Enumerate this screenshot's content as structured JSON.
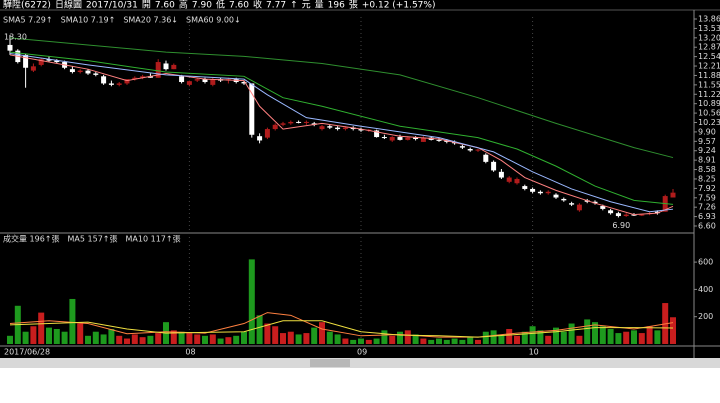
{
  "header": {
    "texts": [
      "驊陞(6272)",
      "日線圖",
      "2017/10/31",
      "開",
      "7.60",
      "高",
      "7.90",
      "低",
      "7.60",
      "收",
      "7.77",
      "↑",
      "元",
      "量",
      "196",
      "張",
      "+0.12 (+1.57%)"
    ]
  },
  "chart_data": {
    "type": "candlestick",
    "legend": [
      {
        "text": "SMA5 7.29↑",
        "color": "#ff5050"
      },
      {
        "text": "SMA10 7.19↑",
        "color": "#5fa8ff"
      },
      {
        "text": "SMA20 7.36↓",
        "color": "#40d040"
      },
      {
        "text": "SMA60 9.00↓",
        "color": "#e8c040"
      }
    ],
    "annotations": [
      {
        "text": "13.30",
        "index": 0
      },
      {
        "text": "6.90",
        "index": 78
      }
    ],
    "categories": [
      "2017/06/28",
      null,
      null,
      null,
      null,
      null,
      null,
      null,
      null,
      null,
      null,
      null,
      null,
      null,
      null,
      null,
      null,
      null,
      null,
      null,
      null,
      null,
      null,
      "08",
      null,
      null,
      null,
      null,
      null,
      null,
      null,
      null,
      null,
      null,
      null,
      null,
      null,
      null,
      null,
      null,
      null,
      null,
      null,
      null,
      null,
      "09",
      null,
      null,
      null,
      null,
      null,
      null,
      null,
      null,
      null,
      null,
      null,
      null,
      null,
      null,
      null,
      null,
      null,
      null,
      null,
      null,
      null,
      "10",
      null,
      null,
      null,
      null,
      null,
      null,
      null,
      null,
      null,
      null,
      null,
      null,
      null,
      null,
      null,
      null,
      null
    ],
    "ohlc": [
      [
        12.95,
        13.3,
        12.6,
        12.75
      ],
      [
        12.75,
        12.8,
        12.3,
        12.35
      ],
      [
        12.6,
        12.65,
        11.45,
        12.15
      ],
      [
        12.05,
        12.3,
        12.0,
        12.2
      ],
      [
        12.25,
        12.5,
        12.2,
        12.45
      ],
      [
        12.45,
        12.55,
        12.35,
        12.4
      ],
      [
        12.4,
        12.45,
        12.3,
        12.35
      ],
      [
        12.35,
        12.4,
        12.1,
        12.15
      ],
      [
        12.1,
        12.2,
        11.95,
        12.0
      ],
      [
        12.0,
        12.1,
        11.95,
        12.05
      ],
      [
        12.05,
        12.1,
        11.9,
        11.95
      ],
      [
        11.95,
        12.0,
        11.85,
        11.9
      ],
      [
        11.85,
        11.9,
        11.55,
        11.6
      ],
      [
        11.6,
        11.7,
        11.5,
        11.55
      ],
      [
        11.55,
        11.65,
        11.5,
        11.6
      ],
      [
        11.6,
        11.75,
        11.55,
        11.75
      ],
      [
        11.75,
        11.85,
        11.7,
        11.8
      ],
      [
        11.8,
        11.9,
        11.75,
        11.85
      ],
      [
        11.85,
        11.95,
        11.8,
        11.8
      ],
      [
        11.8,
        12.45,
        11.8,
        12.35
      ],
      [
        12.3,
        12.4,
        12.05,
        12.1
      ],
      [
        12.1,
        12.3,
        12.1,
        12.25
      ],
      [
        11.85,
        11.9,
        11.6,
        11.65
      ],
      [
        11.55,
        11.7,
        11.5,
        11.68
      ],
      [
        11.7,
        11.8,
        11.65,
        11.75
      ],
      [
        11.75,
        11.8,
        11.6,
        11.65
      ],
      [
        11.55,
        11.8,
        11.5,
        11.75
      ],
      [
        11.75,
        11.8,
        11.65,
        11.7
      ],
      [
        11.7,
        11.8,
        11.6,
        11.75
      ],
      [
        11.75,
        11.8,
        11.6,
        11.65
      ],
      [
        11.65,
        11.7,
        11.55,
        11.6
      ],
      [
        11.6,
        11.6,
        9.7,
        9.8
      ],
      [
        9.75,
        9.85,
        9.5,
        9.6
      ],
      [
        9.7,
        10.05,
        9.65,
        10.0
      ],
      [
        10.0,
        10.2,
        9.95,
        10.15
      ],
      [
        10.15,
        10.25,
        10.1,
        10.2
      ],
      [
        10.2,
        10.3,
        10.15,
        10.25
      ],
      [
        10.25,
        10.3,
        10.2,
        10.22
      ],
      [
        10.22,
        10.3,
        10.15,
        10.25
      ],
      [
        10.2,
        10.25,
        10.1,
        10.15
      ],
      [
        10.0,
        10.15,
        9.95,
        10.1
      ],
      [
        10.1,
        10.15,
        10.0,
        10.05
      ],
      [
        10.05,
        10.1,
        9.95,
        10.0
      ],
      [
        10.0,
        10.1,
        9.95,
        10.05
      ],
      [
        10.05,
        10.1,
        9.95,
        10.0
      ],
      [
        10.0,
        10.05,
        9.9,
        9.95
      ],
      [
        9.95,
        10.0,
        9.9,
        9.98
      ],
      [
        9.95,
        9.98,
        9.7,
        9.72
      ],
      [
        9.72,
        9.8,
        9.65,
        9.7
      ],
      [
        9.6,
        9.75,
        9.55,
        9.72
      ],
      [
        9.72,
        9.8,
        9.6,
        9.62
      ],
      [
        9.62,
        9.75,
        9.6,
        9.7
      ],
      [
        9.7,
        9.75,
        9.6,
        9.65
      ],
      [
        9.55,
        9.75,
        9.55,
        9.7
      ],
      [
        9.7,
        9.75,
        9.6,
        9.62
      ],
      [
        9.62,
        9.7,
        9.55,
        9.6
      ],
      [
        9.6,
        9.65,
        9.5,
        9.55
      ],
      [
        9.55,
        9.6,
        9.45,
        9.5
      ],
      [
        9.4,
        9.45,
        9.3,
        9.35
      ],
      [
        9.3,
        9.35,
        9.2,
        9.25
      ],
      [
        9.25,
        9.3,
        9.2,
        9.28
      ],
      [
        9.1,
        9.15,
        8.8,
        8.85
      ],
      [
        8.85,
        8.9,
        8.5,
        8.55
      ],
      [
        8.5,
        8.6,
        8.25,
        8.3
      ],
      [
        8.15,
        8.35,
        8.1,
        8.3
      ],
      [
        8.1,
        8.3,
        8.05,
        8.25
      ],
      [
        8.0,
        8.05,
        7.85,
        7.9
      ],
      [
        7.9,
        7.95,
        7.75,
        7.8
      ],
      [
        7.8,
        7.85,
        7.7,
        7.75
      ],
      [
        7.75,
        7.85,
        7.7,
        7.8
      ],
      [
        7.7,
        7.75,
        7.55,
        7.6
      ],
      [
        7.55,
        7.6,
        7.45,
        7.5
      ],
      [
        7.4,
        7.45,
        7.3,
        7.35
      ],
      [
        7.15,
        7.4,
        7.1,
        7.35
      ],
      [
        7.5,
        7.55,
        7.4,
        7.45
      ],
      [
        7.45,
        7.5,
        7.35,
        7.4
      ],
      [
        7.3,
        7.35,
        7.15,
        7.2
      ],
      [
        7.15,
        7.2,
        7.0,
        7.05
      ],
      [
        7.05,
        7.1,
        6.9,
        6.95
      ],
      [
        6.95,
        7.05,
        6.92,
        7.0
      ],
      [
        7.0,
        7.05,
        6.95,
        6.98
      ],
      [
        6.98,
        7.02,
        6.95,
        7.0
      ],
      [
        7.02,
        7.1,
        6.98,
        7.05
      ],
      [
        7.1,
        7.15,
        7.0,
        7.05
      ],
      [
        7.1,
        7.7,
        7.1,
        7.65
      ],
      [
        7.6,
        7.9,
        7.6,
        7.77
      ]
    ],
    "up_color": "#b01c1c",
    "down_color": "#ffffff",
    "series": [
      {
        "name": "SMA5",
        "color": "#ff8080",
        "x": [
          0,
          5,
          10,
          15,
          20,
          25,
          30,
          32,
          35,
          40,
          45,
          50,
          55,
          60,
          63,
          66,
          70,
          75,
          80,
          83,
          85
        ],
        "values": [
          12.6,
          12.35,
          12.1,
          11.7,
          11.95,
          11.75,
          11.7,
          10.8,
          10.0,
          10.2,
          10.0,
          9.75,
          9.65,
          9.35,
          8.9,
          8.3,
          7.85,
          7.4,
          7.0,
          7.05,
          7.29
        ]
      },
      {
        "name": "SMA10",
        "color": "#9ab8ff",
        "x": [
          0,
          10,
          20,
          30,
          33,
          38,
          45,
          55,
          62,
          67,
          72,
          77,
          82,
          85
        ],
        "values": [
          12.65,
          12.25,
          11.9,
          11.75,
          11.2,
          10.4,
          10.1,
          9.7,
          9.2,
          8.5,
          7.9,
          7.45,
          7.1,
          7.19
        ]
      },
      {
        "name": "SMA20",
        "color": "#30b030",
        "x": [
          0,
          10,
          20,
          30,
          35,
          40,
          50,
          60,
          65,
          70,
          75,
          80,
          85
        ],
        "values": [
          12.7,
          12.4,
          12.0,
          11.85,
          11.1,
          10.8,
          10.1,
          9.7,
          9.3,
          8.7,
          8.0,
          7.5,
          7.36
        ]
      },
      {
        "name": "SMA60",
        "color": "#2f8f2f",
        "x": [
          0,
          10,
          20,
          30,
          40,
          50,
          60,
          70,
          80,
          85
        ],
        "values": [
          13.2,
          12.95,
          12.7,
          12.55,
          12.3,
          11.9,
          11.1,
          10.2,
          9.35,
          9.0
        ]
      }
    ],
    "ylim": [
      6.39,
      13.93
    ],
    "yticks": [
      {
        "value": 6.6,
        "label": "6.60"
      },
      {
        "value": 6.93,
        "label": "6.93"
      },
      {
        "value": 7.26,
        "label": "7.26"
      },
      {
        "value": 7.59,
        "label": "7.59"
      },
      {
        "value": 7.92,
        "label": "7.92"
      },
      {
        "value": 8.25,
        "label": "8.25"
      },
      {
        "value": 8.58,
        "label": "8.58"
      },
      {
        "value": 8.91,
        "label": "8.91"
      },
      {
        "value": 9.24,
        "label": "9.24"
      },
      {
        "value": 9.57,
        "label": "9.57"
      },
      {
        "value": 9.9,
        "label": "9.90"
      },
      {
        "value": 10.23,
        "label": "10.23"
      },
      {
        "value": 10.56,
        "label": "10.56"
      },
      {
        "value": 10.89,
        "label": "10.89"
      },
      {
        "value": 11.22,
        "label": "11.22"
      },
      {
        "value": 11.55,
        "label": "11.55"
      },
      {
        "value": 11.88,
        "label": "11.88"
      },
      {
        "value": 12.21,
        "label": "12.21"
      },
      {
        "value": 12.54,
        "label": "12.54"
      },
      {
        "value": 12.87,
        "label": "12.87"
      },
      {
        "value": 13.2,
        "label": "13.20"
      },
      {
        "value": 13.53,
        "label": "13.53"
      },
      {
        "value": 13.86,
        "label": "13.86"
      }
    ],
    "volume": {
      "legend": [
        {
          "text": "成交量 196↑張",
          "color": "#ff5050"
        },
        {
          "text": "MA5 157↑張",
          "color": "#ff8040"
        },
        {
          "text": "MA10 117↑張",
          "color": "#f0e040"
        }
      ],
      "values": [
        60,
        280,
        90,
        130,
        230,
        120,
        110,
        90,
        330,
        150,
        60,
        90,
        70,
        110,
        60,
        40,
        70,
        50,
        60,
        80,
        160,
        100,
        90,
        80,
        70,
        60,
        70,
        40,
        50,
        60,
        90,
        620,
        210,
        150,
        130,
        80,
        90,
        70,
        80,
        120,
        160,
        90,
        70,
        40,
        30,
        40,
        30,
        40,
        100,
        60,
        90,
        100,
        70,
        40,
        30,
        40,
        30,
        40,
        30,
        50,
        30,
        90,
        100,
        60,
        110,
        60,
        90,
        130,
        100,
        60,
        120,
        90,
        150,
        60,
        180,
        160,
        130,
        110,
        80,
        90,
        100,
        80,
        130,
        100,
        300,
        196
      ],
      "up_color": "#c81e1e",
      "down_color": "#1e9a1e",
      "series": [
        {
          "name": "MA5",
          "color": "#ff8040",
          "x": [
            0,
            5,
            10,
            15,
            20,
            25,
            30,
            33,
            36,
            40,
            45,
            50,
            55,
            60,
            65,
            70,
            75,
            80,
            85
          ],
          "values": [
            150,
            170,
            150,
            75,
            90,
            80,
            150,
            230,
            210,
            110,
            60,
            70,
            50,
            50,
            80,
            100,
            140,
            110,
            157
          ]
        },
        {
          "name": "MA10",
          "color": "#f0e040",
          "x": [
            0,
            5,
            10,
            15,
            20,
            25,
            30,
            35,
            40,
            45,
            50,
            55,
            60,
            65,
            70,
            75,
            80,
            85
          ],
          "values": [
            140,
            150,
            160,
            110,
            80,
            85,
            90,
            170,
            170,
            90,
            65,
            60,
            50,
            70,
            90,
            120,
            120,
            117
          ]
        }
      ],
      "ylim": [
        0,
        718
      ],
      "yticks": [
        200,
        400,
        600
      ]
    }
  }
}
